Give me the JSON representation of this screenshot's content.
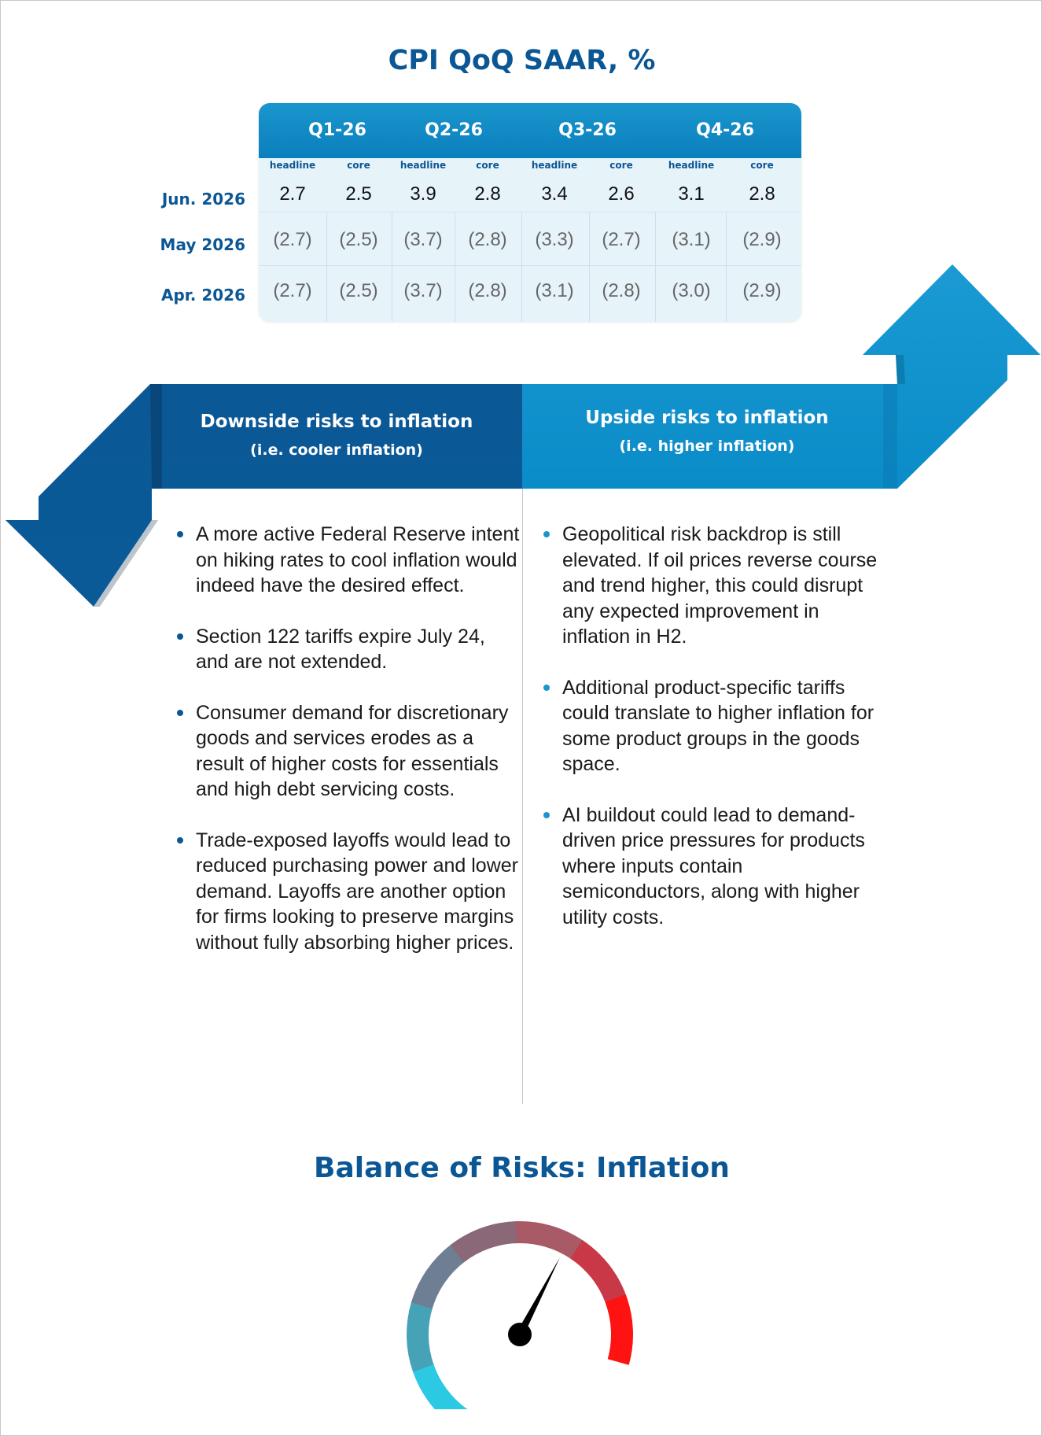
{
  "cpi_table": {
    "title": "CPI QoQ SAAR, %",
    "quarters": [
      "Q1-26",
      "Q2-26",
      "Q3-26",
      "Q4-26"
    ],
    "sub_columns": [
      "headline",
      "core",
      "headline",
      "core",
      "headline",
      "core",
      "headline",
      "core"
    ],
    "rows": [
      {
        "label": "Jun. 2026",
        "values": [
          "2.7",
          "2.5",
          "3.9",
          "2.8",
          "3.4",
          "2.6",
          "3.1",
          "2.8"
        ]
      },
      {
        "label": "May 2026",
        "values": [
          "(2.7)",
          "(2.5)",
          "(3.7)",
          "(2.8)",
          "(3.3)",
          "(2.7)",
          "(3.1)",
          "(2.9)"
        ]
      },
      {
        "label": "Apr. 2026",
        "values": [
          "(2.7)",
          "(2.5)",
          "(3.7)",
          "(2.8)",
          "(3.1)",
          "(2.8)",
          "(3.0)",
          "(2.9)"
        ]
      }
    ]
  },
  "downside": {
    "title": "Downside risks to inflation",
    "subtitle": "(i.e. cooler inflation)",
    "color": "#0b5694",
    "bullets": [
      "A more active Federal Reserve intent on hiking rates to cool inflation would indeed have the desired effect.",
      "Section 122 tariffs expire July 24, and are not extended.",
      "Consumer demand for discretionary goods and services erodes as a result of higher costs for essentials and high debt servicing costs.",
      "Trade-exposed layoffs would lead to reduced purchasing power and lower demand. Layoffs are another option for firms looking to preserve margins without fully absorbing higher prices."
    ]
  },
  "upside": {
    "title": "Upside risks to inflation",
    "subtitle": "(i.e. higher inflation)",
    "color": "#1a96cd",
    "bullets": [
      "Geopolitical risk backdrop is still elevated. If oil prices reverse course and trend higher, this could disrupt any expected improvement in inflation in H2.",
      "Additional product-specific tariffs could translate to higher inflation for some product groups in the goods space.",
      "AI buildout could lead to demand-driven price pressures for products where inputs contain semiconductors, along with higher utility costs."
    ]
  },
  "balance": {
    "title": "Balance of Risks: Inflation",
    "needle_fraction": 0.69,
    "gauge_colors": [
      "#2bc9e3",
      "#46a2b7",
      "#6e7e93",
      "#8a6878",
      "#a85a67",
      "#c93846",
      "#ff1212"
    ]
  }
}
